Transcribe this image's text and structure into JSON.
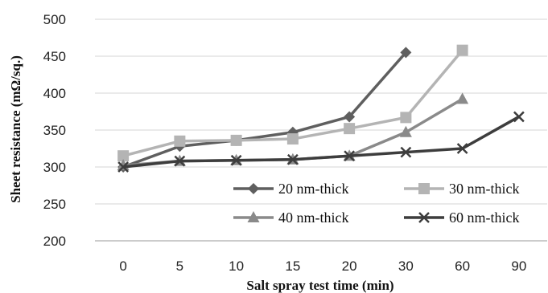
{
  "chart_data": {
    "type": "line",
    "categories": [
      "0",
      "5",
      "10",
      "15",
      "20",
      "30",
      "60",
      "90"
    ],
    "xlabel": "Salt spray test time (min)",
    "ylabel": "Sheet resistance (mΩ/sq.)",
    "ylim": [
      200,
      500
    ],
    "yticks": [
      200,
      250,
      300,
      350,
      400,
      450,
      500
    ],
    "grid": true,
    "legend_position": "lower-right",
    "series": [
      {
        "name": "20 nm-thick",
        "marker": "diamond",
        "color": "#5f5f5f",
        "values": [
          300,
          328,
          336,
          347,
          368,
          455,
          null,
          null
        ]
      },
      {
        "name": "30 nm-thick",
        "marker": "square",
        "color": "#b4b4b4",
        "values": [
          315,
          335,
          336,
          338,
          352,
          367,
          458,
          null
        ]
      },
      {
        "name": "40 nm-thick",
        "marker": "triangle",
        "color": "#8a8a8a",
        "values": [
          302,
          308,
          309,
          310,
          315,
          347,
          392,
          null
        ]
      },
      {
        "name": "60 nm-thick",
        "marker": "x",
        "color": "#3d3d3d",
        "values": [
          300,
          308,
          309,
          310,
          315,
          320,
          325,
          368
        ]
      }
    ]
  }
}
